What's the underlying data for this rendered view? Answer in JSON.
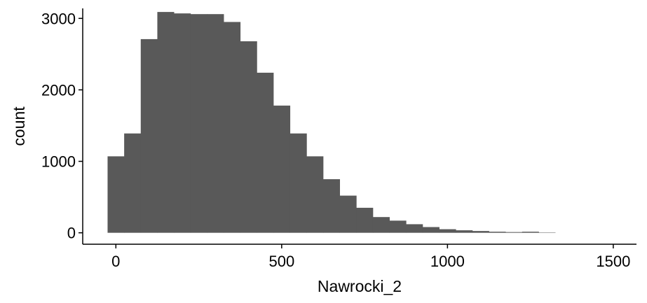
{
  "chart_data": {
    "type": "bar",
    "xlabel": "Nawrocki_2",
    "ylabel": "count",
    "xlim": [
      -100,
      1570
    ],
    "ylim": [
      -160,
      3140
    ],
    "bin_width": 50,
    "x_ticks": [
      0,
      500,
      1000,
      1500
    ],
    "y_ticks": [
      0,
      1000,
      2000,
      3000
    ],
    "grid": false,
    "bar_color": "#595959",
    "bins": [
      {
        "start": -25,
        "count": 1070
      },
      {
        "start": 25,
        "count": 1390
      },
      {
        "start": 75,
        "count": 2710
      },
      {
        "start": 125,
        "count": 3090
      },
      {
        "start": 175,
        "count": 3070
      },
      {
        "start": 225,
        "count": 3060
      },
      {
        "start": 275,
        "count": 3060
      },
      {
        "start": 325,
        "count": 2950
      },
      {
        "start": 375,
        "count": 2680
      },
      {
        "start": 425,
        "count": 2240
      },
      {
        "start": 475,
        "count": 1780
      },
      {
        "start": 525,
        "count": 1390
      },
      {
        "start": 575,
        "count": 1070
      },
      {
        "start": 625,
        "count": 750
      },
      {
        "start": 675,
        "count": 520
      },
      {
        "start": 725,
        "count": 350
      },
      {
        "start": 775,
        "count": 220
      },
      {
        "start": 825,
        "count": 170
      },
      {
        "start": 875,
        "count": 120
      },
      {
        "start": 925,
        "count": 80
      },
      {
        "start": 975,
        "count": 50
      },
      {
        "start": 1025,
        "count": 35
      },
      {
        "start": 1075,
        "count": 25
      },
      {
        "start": 1125,
        "count": 15
      },
      {
        "start": 1175,
        "count": 10
      },
      {
        "start": 1225,
        "count": 15
      },
      {
        "start": 1275,
        "count": 5
      }
    ]
  }
}
